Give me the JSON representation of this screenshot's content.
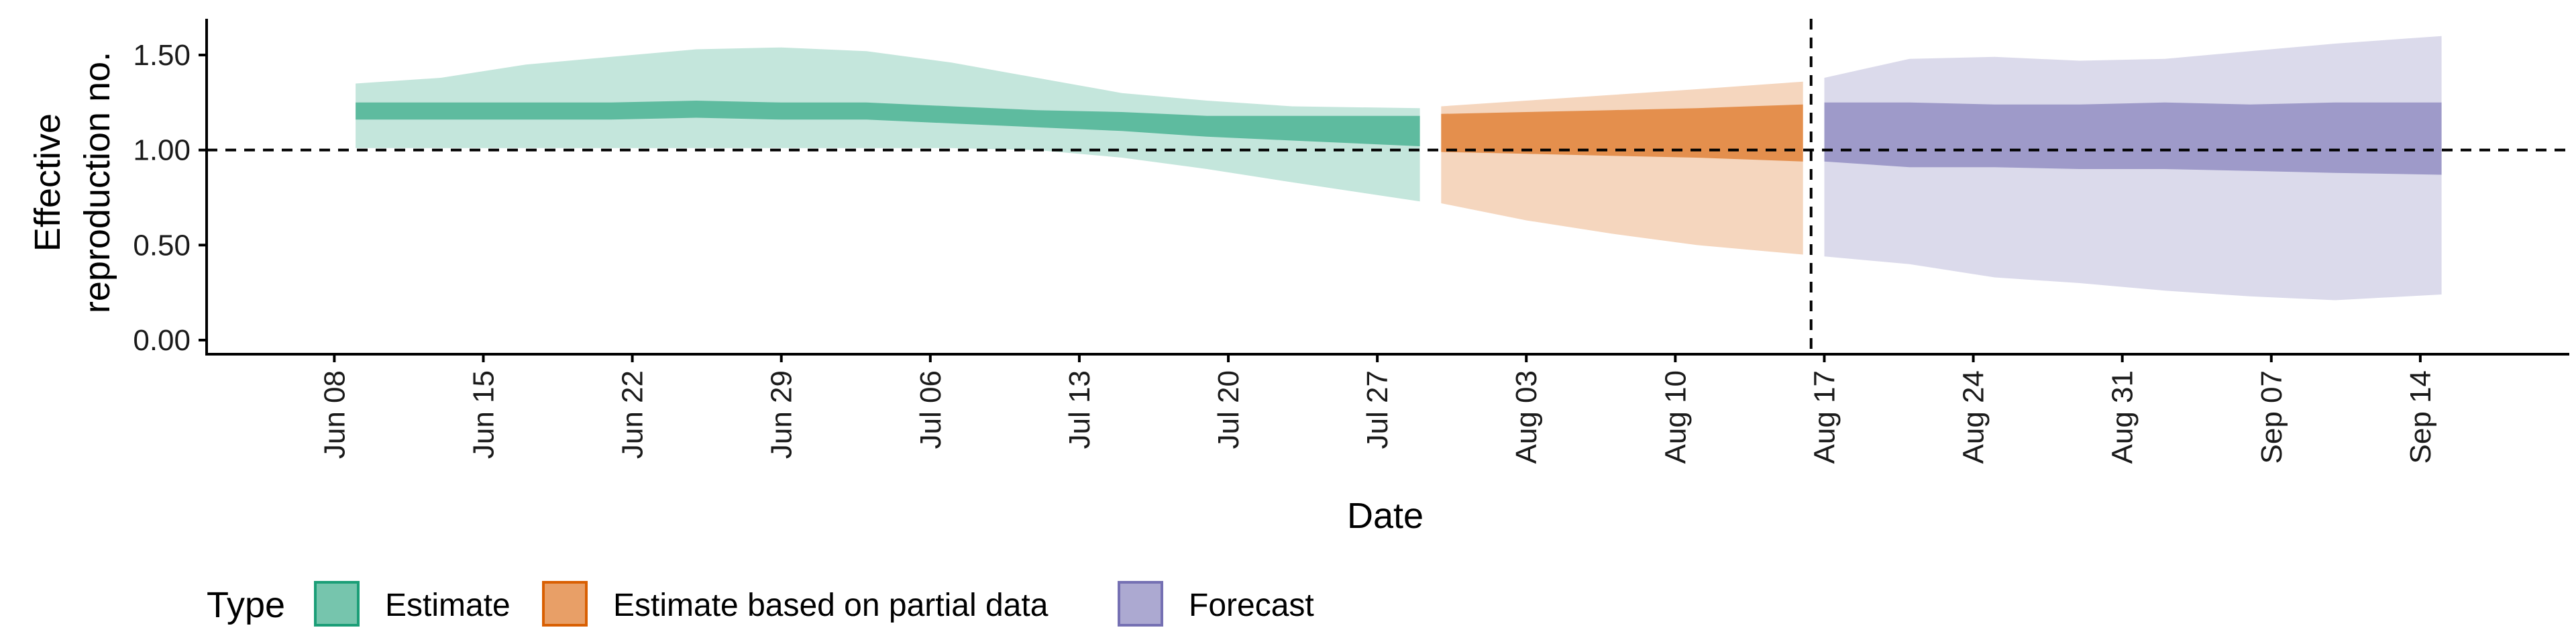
{
  "chart_data": {
    "type": "area",
    "xlabel": "Date",
    "ylabel_lines": [
      "Effective",
      "reproduction no."
    ],
    "ylim": [
      0,
      1.6
    ],
    "yticks": [
      0,
      0.5,
      1.0,
      1.5
    ],
    "ytick_labels": [
      "0.00",
      "0.50",
      "1.00",
      "1.50"
    ],
    "xlim": [
      "2020-06-02",
      "2020-09-21"
    ],
    "xticks": [
      "2020-06-08",
      "2020-06-15",
      "2020-06-22",
      "2020-06-29",
      "2020-07-06",
      "2020-07-13",
      "2020-07-20",
      "2020-07-27",
      "2020-08-03",
      "2020-08-10",
      "2020-08-17",
      "2020-08-24",
      "2020-08-31",
      "2020-09-07",
      "2020-09-14"
    ],
    "xtick_labels": [
      "Jun 08",
      "Jun 15",
      "Jun 22",
      "Jun 29",
      "Jul 06",
      "Jul 13",
      "Jul 20",
      "Jul 27",
      "Aug 03",
      "Aug 10",
      "Aug 17",
      "Aug 24",
      "Aug 31",
      "Sep 07",
      "Sep 14"
    ],
    "reference_y": 1.0,
    "reference_date": "2020-08-16",
    "legend": {
      "title": "Type",
      "position": "bottom"
    },
    "series": [
      {
        "name": "Estimate",
        "fill": "#1b9e77",
        "bands": [
          {
            "date": "2020-06-09",
            "lo90": 1.01,
            "hi90": 1.35,
            "lo50": 1.16,
            "hi50": 1.25
          },
          {
            "date": "2020-06-13",
            "lo90": 1.01,
            "hi90": 1.38,
            "lo50": 1.16,
            "hi50": 1.25
          },
          {
            "date": "2020-06-17",
            "lo90": 1.01,
            "hi90": 1.45,
            "lo50": 1.16,
            "hi50": 1.25
          },
          {
            "date": "2020-06-21",
            "lo90": 1.01,
            "hi90": 1.49,
            "lo50": 1.16,
            "hi50": 1.25
          },
          {
            "date": "2020-06-25",
            "lo90": 1.01,
            "hi90": 1.53,
            "lo50": 1.17,
            "hi50": 1.26
          },
          {
            "date": "2020-06-29",
            "lo90": 1.01,
            "hi90": 1.54,
            "lo50": 1.16,
            "hi50": 1.25
          },
          {
            "date": "2020-07-03",
            "lo90": 1.01,
            "hi90": 1.52,
            "lo50": 1.16,
            "hi50": 1.25
          },
          {
            "date": "2020-07-07",
            "lo90": 1.01,
            "hi90": 1.46,
            "lo50": 1.14,
            "hi50": 1.23
          },
          {
            "date": "2020-07-11",
            "lo90": 1.0,
            "hi90": 1.38,
            "lo50": 1.12,
            "hi50": 1.21
          },
          {
            "date": "2020-07-15",
            "lo90": 0.96,
            "hi90": 1.3,
            "lo50": 1.1,
            "hi50": 1.2
          },
          {
            "date": "2020-07-19",
            "lo90": 0.9,
            "hi90": 1.26,
            "lo50": 1.07,
            "hi50": 1.18
          },
          {
            "date": "2020-07-23",
            "lo90": 0.83,
            "hi90": 1.23,
            "lo50": 1.05,
            "hi50": 1.18
          },
          {
            "date": "2020-07-29",
            "lo90": 0.73,
            "hi90": 1.22,
            "lo50": 1.02,
            "hi50": 1.18
          }
        ]
      },
      {
        "name": "Estimate based on partial data",
        "fill": "#d95f02",
        "bands": [
          {
            "date": "2020-07-30",
            "lo90": 0.72,
            "hi90": 1.23,
            "lo50": 0.99,
            "hi50": 1.19
          },
          {
            "date": "2020-08-03",
            "lo90": 0.63,
            "hi90": 1.26,
            "lo50": 0.98,
            "hi50": 1.2
          },
          {
            "date": "2020-08-07",
            "lo90": 0.56,
            "hi90": 1.29,
            "lo50": 0.97,
            "hi50": 1.21
          },
          {
            "date": "2020-08-11",
            "lo90": 0.5,
            "hi90": 1.32,
            "lo50": 0.96,
            "hi50": 1.22
          },
          {
            "date": "2020-08-16",
            "lo90": 0.45,
            "hi90": 1.36,
            "lo50": 0.94,
            "hi50": 1.24
          }
        ]
      },
      {
        "name": "Forecast",
        "fill": "#7570b3",
        "bands": [
          {
            "date": "2020-08-17",
            "lo90": 0.44,
            "hi90": 1.38,
            "lo50": 0.94,
            "hi50": 1.25
          },
          {
            "date": "2020-08-21",
            "lo90": 0.4,
            "hi90": 1.48,
            "lo50": 0.91,
            "hi50": 1.25
          },
          {
            "date": "2020-08-25",
            "lo90": 0.33,
            "hi90": 1.49,
            "lo50": 0.91,
            "hi50": 1.24
          },
          {
            "date": "2020-08-29",
            "lo90": 0.3,
            "hi90": 1.47,
            "lo50": 0.9,
            "hi50": 1.24
          },
          {
            "date": "2020-09-02",
            "lo90": 0.26,
            "hi90": 1.48,
            "lo50": 0.9,
            "hi50": 1.25
          },
          {
            "date": "2020-09-06",
            "lo90": 0.23,
            "hi90": 1.52,
            "lo50": 0.89,
            "hi50": 1.24
          },
          {
            "date": "2020-09-10",
            "lo90": 0.21,
            "hi90": 1.56,
            "lo50": 0.88,
            "hi50": 1.25
          },
          {
            "date": "2020-09-15",
            "lo90": 0.24,
            "hi90": 1.6,
            "lo50": 0.87,
            "hi50": 1.25
          }
        ]
      }
    ]
  }
}
